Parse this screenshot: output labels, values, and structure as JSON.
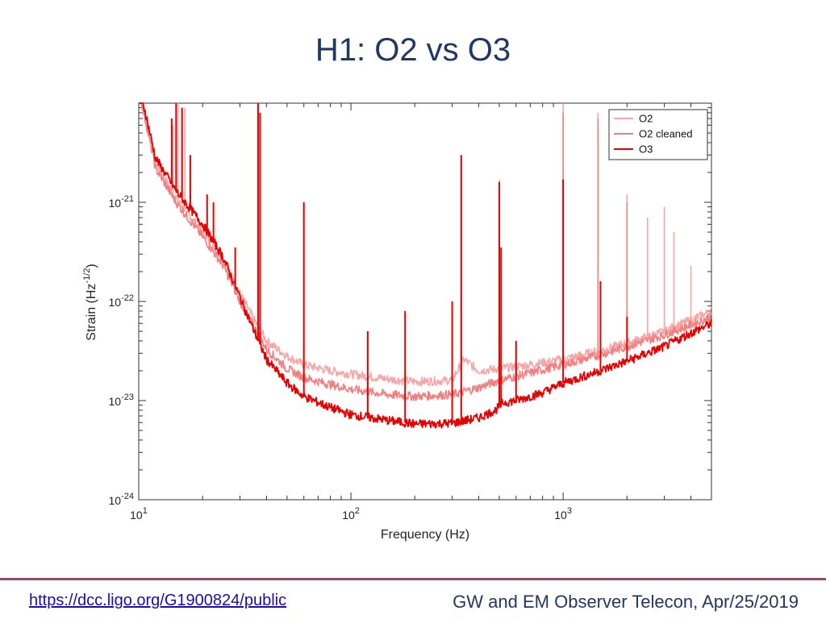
{
  "slide": {
    "title": "H1: O2 vs O3",
    "footer_link": "https://dcc.ligo.org/G1900824/public",
    "footer_note": "GW and EM Observer Telecon, Apr/25/2019"
  },
  "chart_data": {
    "type": "line",
    "title": "",
    "xlabel": "Frequency (Hz)",
    "ylabel_parts": {
      "base": "Strain (Hz",
      "exp": "-1/2",
      "tail": ")"
    },
    "xscale": "log",
    "yscale": "log",
    "xlim": [
      10,
      5000
    ],
    "ylim": [
      1e-24,
      1e-20
    ],
    "xticks": [
      {
        "value": 10,
        "base": "10",
        "exp": "1"
      },
      {
        "value": 100,
        "base": "10",
        "exp": "2"
      },
      {
        "value": 1000,
        "base": "10",
        "exp": "3"
      }
    ],
    "yticks": [
      {
        "value": 1e-24,
        "base": "10",
        "exp": "-24"
      },
      {
        "value": 1e-23,
        "base": "10",
        "exp": "-23"
      },
      {
        "value": 1e-22,
        "base": "10",
        "exp": "-22"
      },
      {
        "value": 1e-21,
        "base": "10",
        "exp": "-21"
      }
    ],
    "legend_position": "top-right",
    "series": [
      {
        "name": "O2",
        "color": "#f6a6a6",
        "x": [
          10,
          12,
          15,
          20,
          25,
          30,
          35,
          40,
          50,
          60,
          80,
          100,
          150,
          200,
          300,
          340,
          400,
          500,
          700,
          1000,
          1500,
          2000,
          3000,
          4000,
          5000
        ],
        "y": [
          1.5e-20,
          2.5e-21,
          1.1e-21,
          5e-22,
          2.6e-22,
          1.2e-22,
          6.5e-23,
          4e-23,
          2.8e-23,
          2.3e-23,
          2e-23,
          1.85e-23,
          1.65e-23,
          1.55e-23,
          1.6e-23,
          2.6e-23,
          2e-23,
          2.1e-23,
          2.3e-23,
          2.6e-23,
          3.2e-23,
          3.8e-23,
          5e-23,
          6.5e-23,
          8e-23
        ],
        "lines": [
          {
            "x": 14.5,
            "y": 6e-21
          },
          {
            "x": 15.3,
            "y": 1e-20
          },
          {
            "x": 16.5,
            "y": 9e-21
          },
          {
            "x": 36.5,
            "y": 1e-20
          },
          {
            "x": 60,
            "y": 1e-21
          },
          {
            "x": 331,
            "y": 2.8e-21
          },
          {
            "x": 500,
            "y": 1.7e-21
          },
          {
            "x": 1000,
            "y": 1e-20
          },
          {
            "x": 1460,
            "y": 8e-21
          },
          {
            "x": 2000,
            "y": 1.2e-21
          },
          {
            "x": 2500,
            "y": 7e-22
          },
          {
            "x": 3000,
            "y": 9e-22
          },
          {
            "x": 3330,
            "y": 5e-22
          },
          {
            "x": 4000,
            "y": 2.3e-22
          }
        ]
      },
      {
        "name": "O2 cleaned",
        "color": "#f08080",
        "x": [
          10,
          12,
          15,
          20,
          25,
          30,
          35,
          40,
          50,
          60,
          80,
          100,
          150,
          200,
          300,
          400,
          500,
          700,
          1000,
          1500,
          2000,
          3000,
          4000,
          5000
        ],
        "y": [
          1.4e-20,
          2.2e-21,
          1e-21,
          4.5e-22,
          2.3e-22,
          1e-22,
          5.5e-23,
          3.3e-23,
          2.1e-23,
          1.7e-23,
          1.45e-23,
          1.3e-23,
          1.15e-23,
          1.1e-23,
          1.15e-23,
          1.35e-23,
          1.6e-23,
          1.9e-23,
          2.3e-23,
          2.9e-23,
          3.5e-23,
          4.6e-23,
          5.8e-23,
          7e-23
        ],
        "lines": [
          {
            "x": 36.5,
            "y": 9e-21
          },
          {
            "x": 60,
            "y": 8e-22
          },
          {
            "x": 331,
            "y": 2.5e-21
          },
          {
            "x": 500,
            "y": 1.5e-21
          },
          {
            "x": 1000,
            "y": 8e-21
          },
          {
            "x": 1460,
            "y": 7e-21
          },
          {
            "x": 2000,
            "y": 1e-21
          }
        ]
      },
      {
        "name": "O3",
        "color": "#e60000",
        "x": [
          10,
          12,
          15,
          20,
          25,
          30,
          35,
          40,
          50,
          60,
          80,
          100,
          150,
          200,
          300,
          400,
          480,
          520,
          600,
          800,
          1000,
          1500,
          2000,
          3000,
          4000,
          5000
        ],
        "y": [
          1.6e-20,
          2.8e-21,
          1.3e-21,
          6e-22,
          2.8e-22,
          1.1e-22,
          5e-23,
          2.6e-23,
          1.5e-23,
          1.1e-23,
          8.5e-24,
          7.2e-24,
          6.3e-24,
          5.8e-24,
          5.9e-24,
          6.7e-24,
          8e-24,
          9.5e-24,
          1e-23,
          1.2e-23,
          1.5e-23,
          2e-23,
          2.5e-23,
          3.5e-23,
          4.8e-23,
          6e-23
        ],
        "lines": [
          {
            "x": 14.3,
            "y": 7e-21
          },
          {
            "x": 15,
            "y": 1e-20
          },
          {
            "x": 16,
            "y": 9e-21
          },
          {
            "x": 17.5,
            "y": 3e-21
          },
          {
            "x": 21,
            "y": 1.2e-21
          },
          {
            "x": 22.5,
            "y": 1e-21
          },
          {
            "x": 28.5,
            "y": 3.5e-22
          },
          {
            "x": 36.5,
            "y": 1e-20
          },
          {
            "x": 37.3,
            "y": 8e-21
          },
          {
            "x": 60,
            "y": 1e-21
          },
          {
            "x": 120,
            "y": 5e-23
          },
          {
            "x": 180,
            "y": 8e-23
          },
          {
            "x": 300,
            "y": 1e-22
          },
          {
            "x": 331,
            "y": 3e-21
          },
          {
            "x": 500,
            "y": 1.6e-21
          },
          {
            "x": 510,
            "y": 3.5e-22
          },
          {
            "x": 600,
            "y": 4e-23
          },
          {
            "x": 1000,
            "y": 1.7e-21
          },
          {
            "x": 1500,
            "y": 1.6e-22
          },
          {
            "x": 2000,
            "y": 7e-23
          }
        ]
      }
    ]
  }
}
